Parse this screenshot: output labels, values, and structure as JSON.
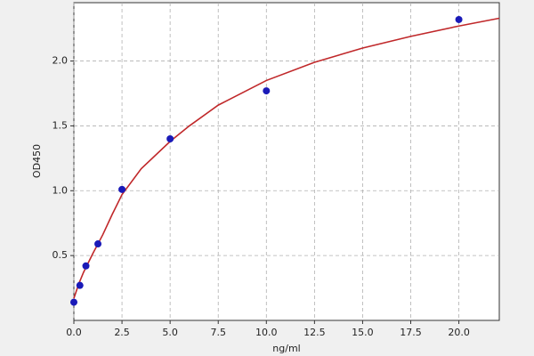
{
  "chart_data": {
    "type": "scatter",
    "x_label": "ng/ml",
    "y_label": "OD450",
    "series": [
      {
        "color": "#1a1ab8",
        "x": [
          0,
          0.3125,
          0.625,
          1.25,
          2.5,
          5,
          10,
          20
        ],
        "values": [
          0.14,
          0.27,
          0.42,
          0.59,
          1.01,
          1.4,
          1.77,
          2.32
        ]
      }
    ],
    "fit_curve": {
      "color": "#c0282a",
      "x": [
        0,
        0.25,
        0.5,
        1,
        1.5,
        2,
        2.5,
        3.5,
        5,
        6,
        7.5,
        10,
        12.5,
        15,
        17.5,
        20,
        22.1
      ],
      "values": [
        0.17,
        0.28,
        0.37,
        0.52,
        0.66,
        0.82,
        0.97,
        1.17,
        1.38,
        1.5,
        1.66,
        1.85,
        1.99,
        2.1,
        2.19,
        2.27,
        2.33
      ]
    },
    "xlim": [
      0,
      22.1
    ],
    "ylim": [
      0,
      2.45
    ],
    "xticks": [
      {
        "value": 0,
        "label": "0.0"
      },
      2.5,
      {
        "value": 5,
        "label": "5.0"
      },
      7.5,
      {
        "value": 10,
        "label": "10.0"
      },
      12.5,
      {
        "value": 15,
        "label": "15.0"
      },
      17.5,
      {
        "value": 20,
        "label": "20.0"
      }
    ],
    "yticks": [
      0.5,
      {
        "value": 1,
        "label": "1.0"
      },
      1.5,
      {
        "value": 2,
        "label": "2.0"
      }
    ],
    "grid": true
  }
}
